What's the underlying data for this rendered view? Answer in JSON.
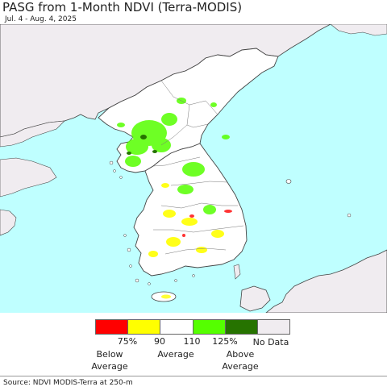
{
  "title": "PASG from 1-Month NDVI (Terra-MODIS)",
  "subtitle": "Jul. 4 - Aug. 4, 2025",
  "legend": {
    "swatches": [
      {
        "name": "below-75",
        "color": "#ff0000"
      },
      {
        "name": "75-90",
        "color": "#ffff00"
      },
      {
        "name": "90-110",
        "color": "#ffffff"
      },
      {
        "name": "110-125",
        "color": "#55ff00"
      },
      {
        "name": "above-125",
        "color": "#267300"
      },
      {
        "name": "no-data",
        "color": "#f0ecf0"
      }
    ],
    "ticks": [
      "75%",
      "90",
      "110",
      "125%"
    ],
    "labels": {
      "below": [
        "Below",
        "Average"
      ],
      "average": "Average",
      "above": [
        "Above",
        "Average"
      ],
      "nodata": "No Data"
    }
  },
  "colors": {
    "water": "#bfffff",
    "land": "#f0ecf0",
    "border": "#444444"
  },
  "source": "Source: NDVI MODIS-Terra at 250-m"
}
